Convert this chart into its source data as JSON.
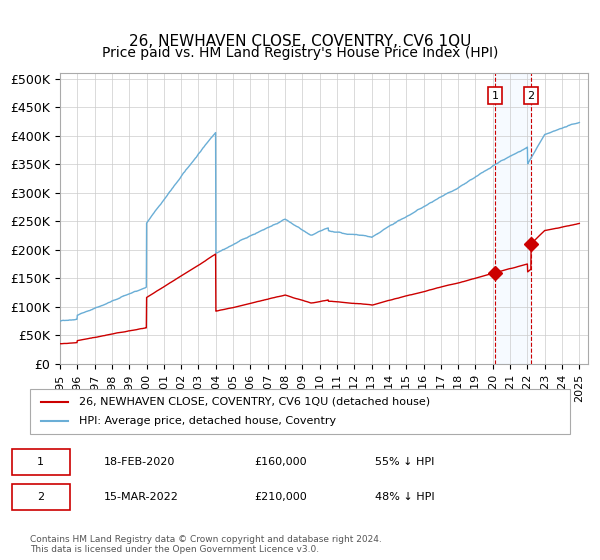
{
  "title": "26, NEWHAVEN CLOSE, COVENTRY, CV6 1QU",
  "subtitle": "Price paid vs. HM Land Registry's House Price Index (HPI)",
  "x_start_year": 1995,
  "x_end_year": 2025,
  "ylim": [
    0,
    500000
  ],
  "yticks": [
    0,
    50000,
    100000,
    150000,
    200000,
    250000,
    300000,
    350000,
    400000,
    450000,
    500000
  ],
  "ytick_labels": [
    "£0",
    "£50K",
    "£100K",
    "£150K",
    "£200K",
    "£250K",
    "£300K",
    "£350K",
    "£400K",
    "£450K",
    "£500K"
  ],
  "hpi_color": "#6aaed6",
  "price_color": "#cc0000",
  "marker_color": "#cc0000",
  "dashed_line_color": "#cc0000",
  "shade_color": "#ddeeff",
  "transaction1_date": 2020.12,
  "transaction1_price": 160000,
  "transaction1_label": "1",
  "transaction2_date": 2022.2,
  "transaction2_price": 210000,
  "transaction2_label": "2",
  "legend_entry1": "26, NEWHAVEN CLOSE, COVENTRY, CV6 1QU (detached house)",
  "legend_entry2": "HPI: Average price, detached house, Coventry",
  "table_row1": [
    "1",
    "18-FEB-2020",
    "£160,000",
    "55% ↓ HPI"
  ],
  "table_row2": [
    "2",
    "15-MAR-2022",
    "£210,000",
    "48% ↓ HPI"
  ],
  "footer": "Contains HM Land Registry data © Crown copyright and database right 2024.\nThis data is licensed under the Open Government Licence v3.0.",
  "title_fontsize": 11,
  "subtitle_fontsize": 10,
  "axis_fontsize": 9,
  "label_fontsize": 8
}
